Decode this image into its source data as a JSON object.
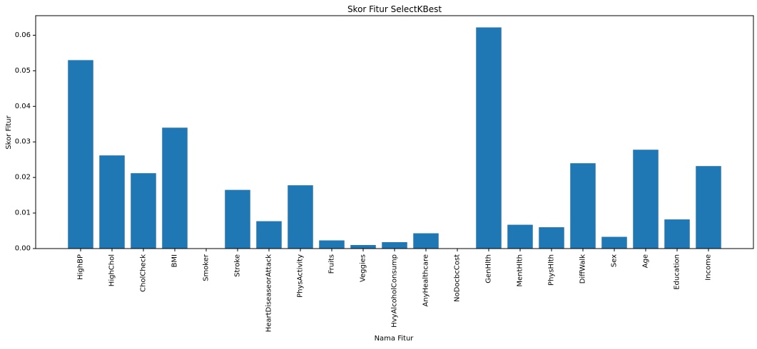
{
  "chart_data": {
    "type": "bar",
    "title": "Skor Fitur SelectKBest",
    "xlabel": "Nama Fitur",
    "ylabel": "Skor Fitur",
    "ylim": [
      0,
      0.0655
    ],
    "yticks": [
      "0.00",
      "0.01",
      "0.02",
      "0.03",
      "0.04",
      "0.05",
      "0.06"
    ],
    "grid": false,
    "bar_color": "#1f77b4",
    "categories": [
      "HighBP",
      "HighChol",
      "CholCheck",
      "BMI",
      "Smoker",
      "Stroke",
      "HeartDiseaseorAttack",
      "PhysActivity",
      "Fruits",
      "Veggies",
      "HvyAlcoholConsump",
      "AnyHealthcare",
      "NoDocbcCost",
      "GenHlth",
      "MentHlth",
      "PhysHlth",
      "DiffWalk",
      "Sex",
      "Age",
      "Education",
      "Income"
    ],
    "values": [
      0.053,
      0.0262,
      0.0212,
      0.034,
      0.0,
      0.0165,
      0.0077,
      0.0178,
      0.0023,
      0.001,
      0.0018,
      0.0043,
      0.0,
      0.0622,
      0.0067,
      0.006,
      0.024,
      0.0033,
      0.0278,
      0.0082,
      0.0232
    ]
  }
}
